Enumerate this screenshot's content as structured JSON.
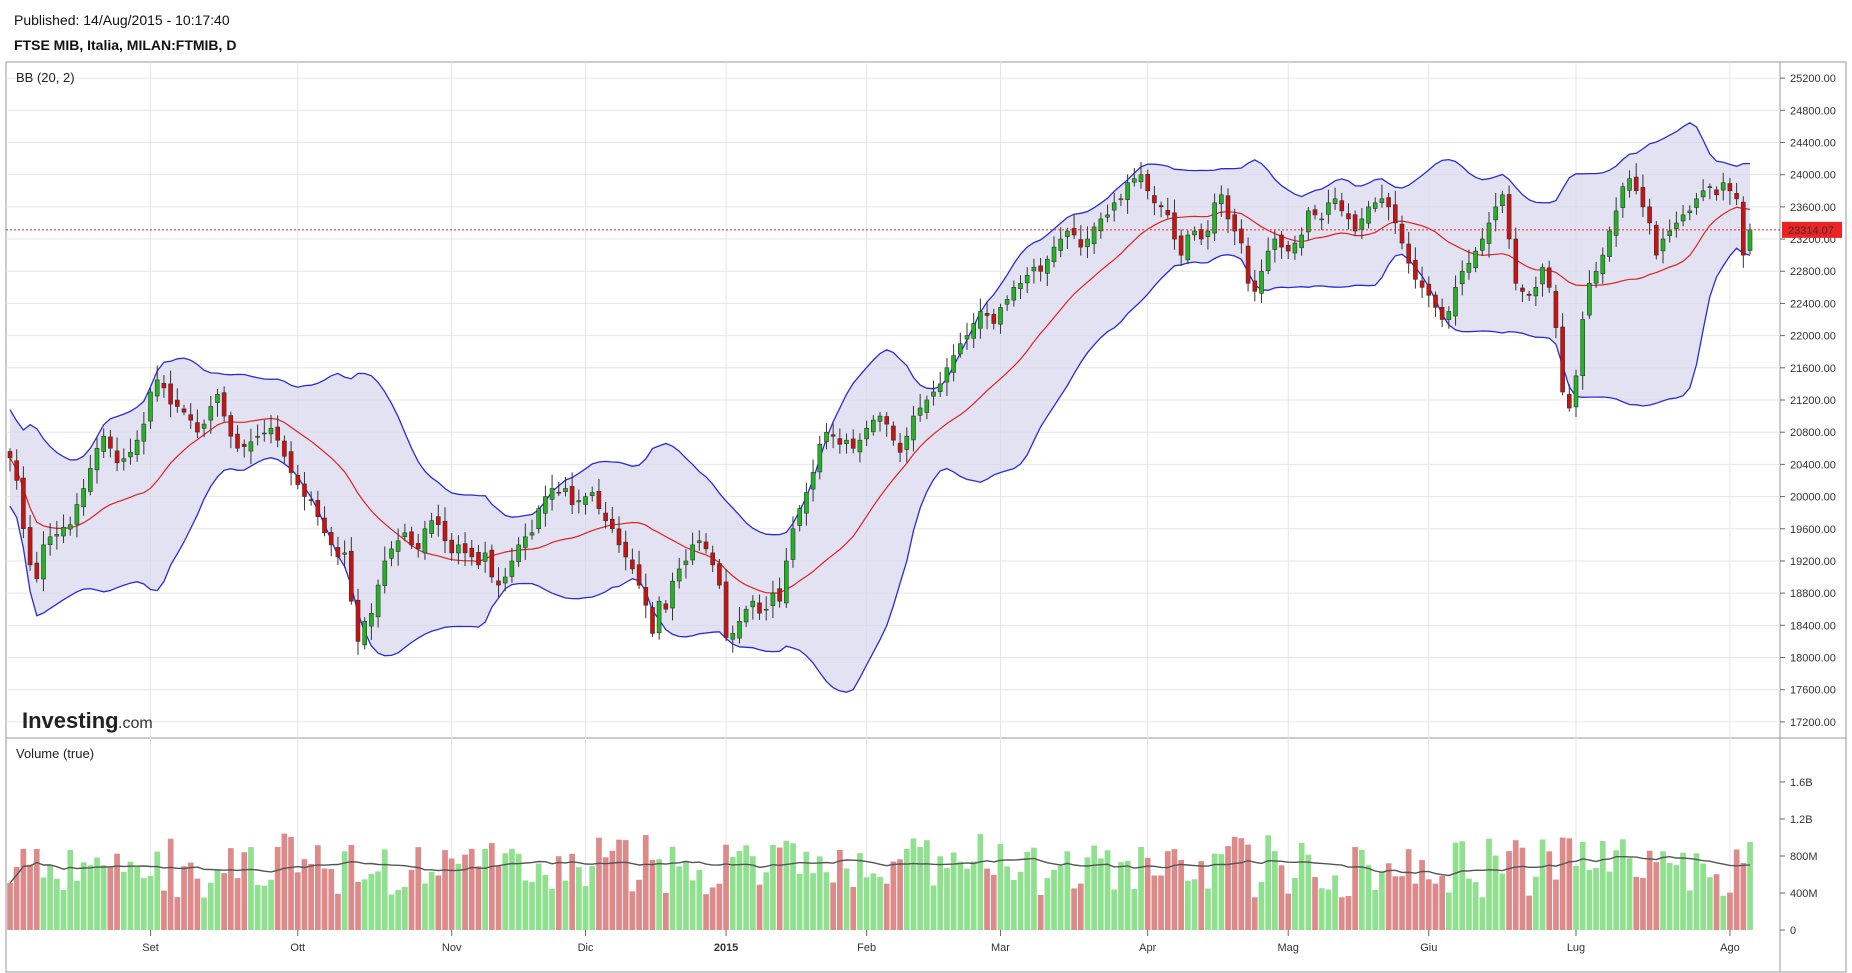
{
  "header": {
    "published": "Published: 14/Aug/2015 - 10:17:40",
    "symbol": "FTSE MIB, Italia, MILAN:FTMIB, D"
  },
  "branding": {
    "logo": "Investing",
    "logo_suffix": ".com"
  },
  "colors": {
    "up": "#22b522",
    "down": "#cc1111",
    "band_line": "#2b2bd6",
    "band_fill": "#d8d8ee",
    "mid_line": "#dd2222",
    "vol_up": "#8fe08f",
    "vol_down": "#dd8a8a",
    "vol_ma": "#555555",
    "last_price": "#ee2222",
    "grid": "#e6e6e6"
  },
  "chart_data": [
    {
      "type": "candlestick",
      "indicator_label": "BB (20, 2)",
      "ylim": [
        17000,
        25400
      ],
      "y_ticks": [
        "25200.00",
        "24800.00",
        "24400.00",
        "24000.00",
        "23600.00",
        "23200.00",
        "22800.00",
        "22400.00",
        "22000.00",
        "21600.00",
        "21200.00",
        "20800.00",
        "20400.00",
        "20000.00",
        "19600.00",
        "19200.00",
        "18800.00",
        "18400.00",
        "18000.00",
        "17600.00",
        "17200.00"
      ],
      "last_price": "23314.07",
      "x_labels": [
        {
          "label": "Set",
          "index": 21
        },
        {
          "label": "Ott",
          "index": 43
        },
        {
          "label": "Nov",
          "index": 66
        },
        {
          "label": "Dic",
          "index": 86
        },
        {
          "label": "2015",
          "index": 107
        },
        {
          "label": "Feb",
          "index": 128
        },
        {
          "label": "Mar",
          "index": 148
        },
        {
          "label": "Apr",
          "index": 170
        },
        {
          "label": "Mag",
          "index": 191
        },
        {
          "label": "Giu",
          "index": 212
        },
        {
          "label": "Lug",
          "index": 234
        },
        {
          "label": "Ago",
          "index": 257
        }
      ],
      "close_series": [
        20480,
        20200,
        19600,
        19150,
        18980,
        19400,
        19500,
        19530,
        19620,
        19650,
        19900,
        20100,
        20350,
        20600,
        20750,
        20600,
        20420,
        20470,
        20550,
        20700,
        20900,
        21300,
        21450,
        21350,
        21150,
        21120,
        21050,
        20950,
        20800,
        20900,
        21120,
        21270,
        21000,
        20750,
        20600,
        20620,
        20680,
        20750,
        20790,
        20850,
        20700,
        20500,
        20300,
        20150,
        20000,
        19950,
        19750,
        19550,
        19400,
        19250,
        19300,
        18700,
        18200,
        18450,
        18550,
        18900,
        19200,
        19350,
        19450,
        19550,
        19400,
        19350,
        19600,
        19700,
        19650,
        19450,
        19300,
        19400,
        19300,
        19250,
        19150,
        19300,
        19000,
        18900,
        19000,
        19200,
        19400,
        19500,
        19550,
        19850,
        20000,
        20100,
        20050,
        20100,
        19900,
        19950,
        20000,
        20050,
        19850,
        19700,
        19600,
        19400,
        19250,
        19100,
        18900,
        18650,
        18300,
        18700,
        18600,
        18950,
        19100,
        19200,
        19400,
        19450,
        19350,
        19150,
        18900,
        18250,
        18300,
        18450,
        18600,
        18700,
        18550,
        18600,
        18800,
        18700,
        19200,
        19600,
        19850,
        20050,
        20300,
        20650,
        20800,
        20750,
        20650,
        20700,
        20600,
        20700,
        20850,
        20950,
        21000,
        20900,
        20700,
        20550,
        20750,
        21000,
        21100,
        21200,
        21300,
        21400,
        21600,
        21750,
        21900,
        22000,
        22150,
        22300,
        22250,
        22150,
        22350,
        22450,
        22600,
        22650,
        22750,
        22850,
        22800,
        22950,
        23100,
        23200,
        23300,
        23250,
        23100,
        23200,
        23350,
        23450,
        23500,
        23650,
        23700,
        23900,
        23950,
        24000,
        23800,
        23650,
        23600,
        23500,
        23200,
        23000,
        23250,
        23300,
        23200,
        23300,
        23650,
        23750,
        23450,
        23300,
        23150,
        22650,
        22550,
        22800,
        23050,
        23200,
        23100,
        23050,
        23150,
        23250,
        23550,
        23500,
        23450,
        23650,
        23700,
        23550,
        23450,
        23300,
        23450,
        23600,
        23650,
        23700,
        23600,
        23400,
        23150,
        22900,
        22700,
        22600,
        22500,
        22350,
        22200,
        22300,
        22600,
        22800,
        22900,
        23050,
        23200,
        23400,
        23600,
        23750,
        23200,
        22650,
        22550,
        22500,
        22600,
        22850,
        22600,
        22100,
        21300,
        21100,
        21500,
        22200,
        22650,
        22800,
        23000,
        23300,
        23550,
        23850,
        23950,
        23800,
        23600,
        23400,
        23000,
        23200,
        23300,
        23400,
        23500,
        23550,
        23700,
        23800,
        23850,
        23750,
        23900,
        23800,
        23700,
        23000,
        23314
      ],
      "volume_ylim": [
        0,
        2000000000
      ],
      "volume_label": "Volume (true)",
      "volume_ticks": [
        "1.6B",
        "1.2B",
        "800M",
        "400M",
        "0"
      ]
    }
  ]
}
